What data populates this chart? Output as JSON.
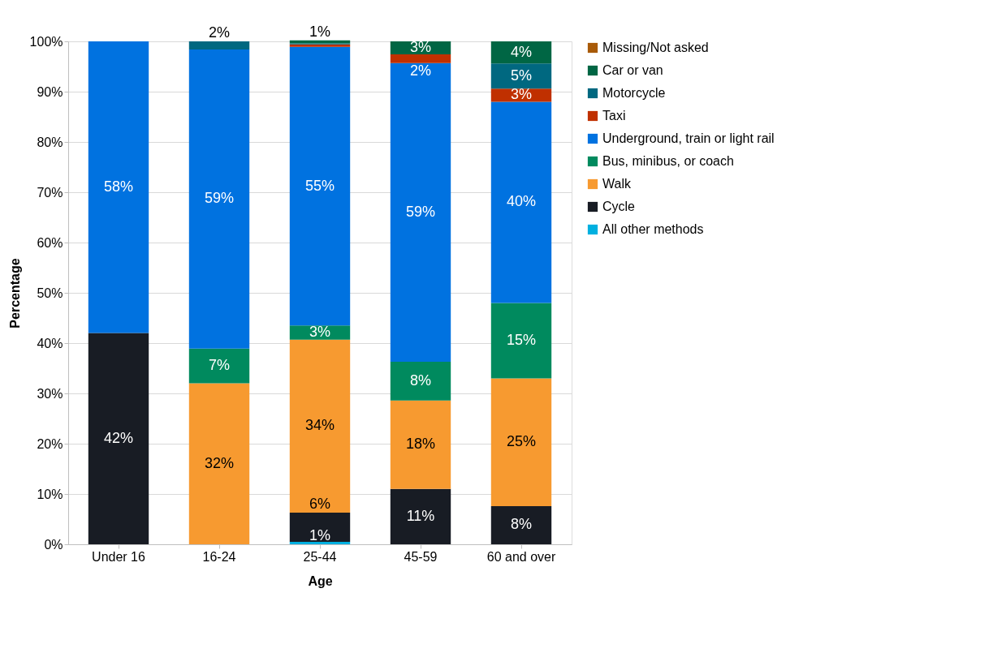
{
  "chart_data": {
    "type": "bar",
    "stacked": true,
    "xlabel": "Age",
    "ylabel": "Percentage",
    "categories": [
      "Under 16",
      "16-24",
      "25-44",
      "45-59",
      "60 and over"
    ],
    "series": [
      {
        "name": "All other methods",
        "color": "#00b0e0",
        "values": [
          null,
          null,
          0.5,
          null,
          null
        ],
        "value_labels": [
          null,
          null,
          "1%",
          null,
          null
        ]
      },
      {
        "name": "Cycle",
        "color": "#181c24",
        "values": [
          42,
          null,
          5.8,
          11,
          7.6
        ],
        "value_labels": [
          "42%",
          null,
          "6%",
          "11%",
          "8%"
        ]
      },
      {
        "name": "Walk",
        "color": "#f79a30",
        "values": [
          null,
          32,
          34.4,
          17.6,
          25.4
        ],
        "value_labels": [
          null,
          "32%",
          "34%",
          "18%",
          "25%"
        ]
      },
      {
        "name": "Bus, minibus, or coach",
        "color": "#008a5e",
        "values": [
          null,
          6.9,
          2.8,
          7.7,
          15
        ],
        "value_labels": [
          null,
          "7%",
          "3%",
          "8%",
          "15%"
        ]
      },
      {
        "name": "Underground, train or light rail",
        "color": "#0072e0",
        "values": [
          58,
          59.5,
          55.4,
          59.4,
          40
        ],
        "value_labels": [
          "58%",
          "59%",
          "55%",
          "59%",
          "40%"
        ]
      },
      {
        "name": "Taxi",
        "color": "#c03000",
        "values": [
          null,
          null,
          0.5,
          1.7,
          2.6
        ],
        "value_labels": [
          null,
          null,
          null,
          "2%",
          "3%"
        ]
      },
      {
        "name": "Motorcycle",
        "color": "#006880",
        "values": [
          null,
          1.6,
          0.2,
          null,
          5
        ],
        "value_labels": [
          null,
          "2%",
          null,
          null,
          "5%"
        ]
      },
      {
        "name": "Car or van",
        "color": "#006644",
        "values": [
          null,
          null,
          0.6,
          2.6,
          4.4
        ],
        "value_labels": [
          null,
          null,
          "1%",
          "3%",
          "4%"
        ]
      },
      {
        "name": "Missing/Not asked",
        "color": "#a85a08",
        "values": [
          null,
          null,
          null,
          null,
          null
        ]
      }
    ],
    "ylim": [
      0,
      100
    ],
    "yticks": [
      {
        "value": 0,
        "label": "0%"
      },
      {
        "value": 10,
        "label": "10%"
      },
      {
        "value": 20,
        "label": "20%"
      },
      {
        "value": 30,
        "label": "30%"
      },
      {
        "value": 40,
        "label": "40%"
      },
      {
        "value": 50,
        "label": "50%"
      },
      {
        "value": 60,
        "label": "60%"
      },
      {
        "value": 70,
        "label": "70%"
      },
      {
        "value": 80,
        "label": "80%"
      },
      {
        "value": 90,
        "label": "90%"
      },
      {
        "value": 100,
        "label": "100%"
      }
    ],
    "grid": "y",
    "legend": "right"
  }
}
